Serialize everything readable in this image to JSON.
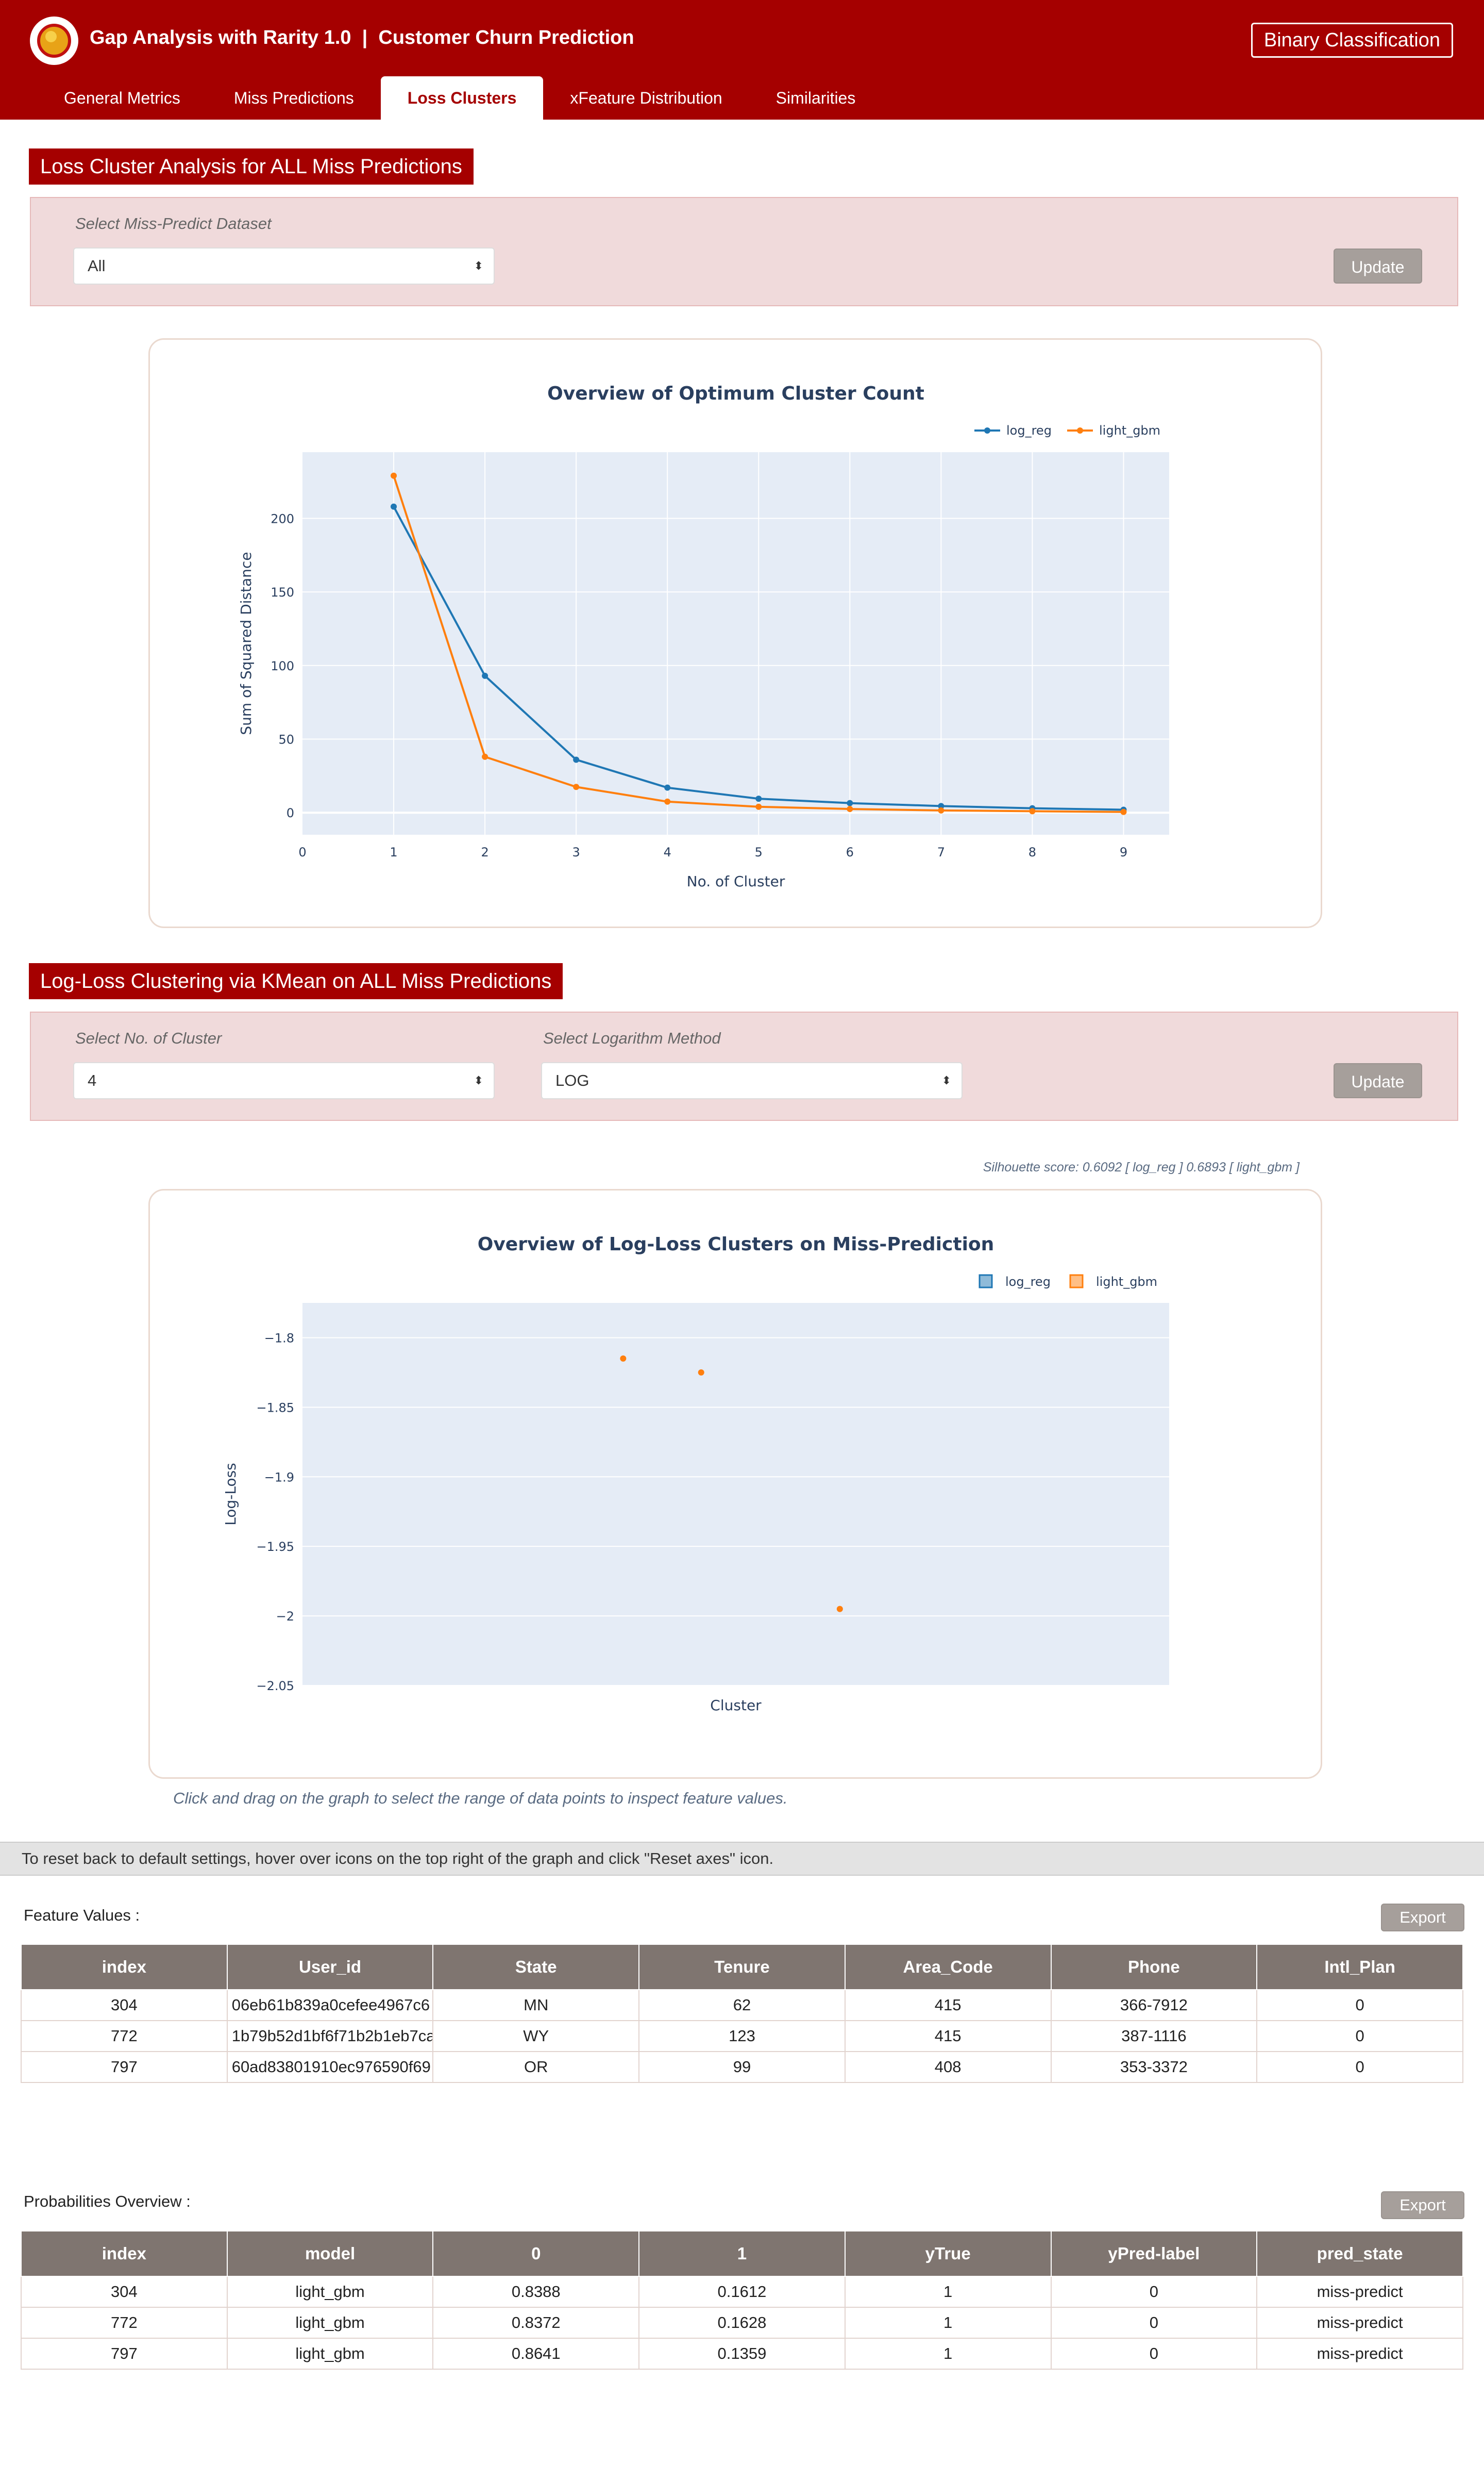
{
  "app": {
    "title": "Gap Analysis with Rarity 1.0  |  Customer Churn Prediction",
    "badge": "Binary Classification"
  },
  "tabs": [
    {
      "label": "General Metrics"
    },
    {
      "label": "Miss Predictions"
    },
    {
      "label": "Loss Clusters"
    },
    {
      "label": "xFeature Distribution"
    },
    {
      "label": "Similarities"
    }
  ],
  "active_tab": "Loss Clusters",
  "section1": {
    "title": "Loss Cluster Analysis for ALL Miss Predictions",
    "select_label": "Select Miss-Predict Dataset",
    "select_value": "All",
    "update_label": "Update"
  },
  "section2": {
    "title": "Log-Loss Clustering via KMean on ALL Miss Predictions",
    "cluster_label": "Select No. of Cluster",
    "cluster_value": "4",
    "method_label": "Select Logarithm Method",
    "method_value": "LOG",
    "update_label": "Update"
  },
  "silhouette": "Silhouette score: 0.6092 [ log_reg ] 0.6893 [ light_gbm ]",
  "drag_note": "Click and drag on the graph to select the range of data points to inspect feature values.",
  "reset_note": "To reset back to default settings, hover over icons on the top right of the graph and click \"Reset axes\" icon.",
  "chart_data": [
    {
      "type": "line",
      "title": "Overview of Optimum Cluster Count",
      "xlabel": "No. of Cluster",
      "ylabel": "Sum of Squared Distance",
      "x": [
        1,
        2,
        3,
        4,
        5,
        6,
        7,
        8,
        9
      ],
      "xlim": [
        0,
        9.5
      ],
      "ylim": [
        -15,
        245
      ],
      "xticks": [
        "0",
        "1",
        "2",
        "3",
        "4",
        "5",
        "6",
        "7",
        "8",
        "9"
      ],
      "yticks": [
        0,
        50,
        100,
        150,
        200
      ],
      "legend": "top-right",
      "grid": true,
      "series": [
        {
          "name": "log_reg",
          "color": "#1f77b4",
          "values": [
            208,
            93,
            36,
            17,
            9.5,
            6.5,
            4.5,
            3,
            2
          ]
        },
        {
          "name": "light_gbm",
          "color": "#ff7f0e",
          "values": [
            229,
            38,
            17.5,
            7.5,
            4,
            2.5,
            1.5,
            1,
            0.5
          ]
        }
      ]
    },
    {
      "type": "scatter",
      "title": "Overview of Log-Loss Clusters on Miss-Prediction",
      "xlabel": "Cluster",
      "ylabel": "Log-Loss",
      "ylim": [
        -2.05,
        -1.775
      ],
      "yticks": [
        -1.8,
        -1.85,
        -1.9,
        -1.95,
        -2,
        -2.05
      ],
      "ytick_labels": [
        "−1.8",
        "−1.85",
        "−1.9",
        "−1.95",
        "−2",
        "−2.05"
      ],
      "legend": "top-right",
      "grid": true,
      "series": [
        {
          "name": "log_reg",
          "color": "#1f77b4",
          "points": []
        },
        {
          "name": "light_gbm",
          "color": "#ff7f0e",
          "points": [
            {
              "x": 0.37,
              "y": -1.815
            },
            {
              "x": 0.46,
              "y": -1.825
            },
            {
              "x": 0.62,
              "y": -1.995
            }
          ]
        }
      ]
    }
  ],
  "feature_values": {
    "label": "Feature Values :",
    "export_label": "Export",
    "columns": [
      "index",
      "User_id",
      "State",
      "Tenure",
      "Area_Code",
      "Phone",
      "Intl_Plan"
    ],
    "rows": [
      [
        "304",
        "06eb61b839a0cefee4967c6",
        "MN",
        "62",
        "415",
        "366-7912",
        "0"
      ],
      [
        "772",
        "1b79b52d1bf6f71b2b1eb7ca",
        "WY",
        "123",
        "415",
        "387-1116",
        "0"
      ],
      [
        "797",
        "60ad83801910ec976590f69",
        "OR",
        "99",
        "408",
        "353-3372",
        "0"
      ]
    ]
  },
  "probabilities": {
    "label": "Probabilities Overview :",
    "export_label": "Export",
    "columns": [
      "index",
      "model",
      "0",
      "1",
      "yTrue",
      "yPred-label",
      "pred_state"
    ],
    "rows": [
      [
        "304",
        "light_gbm",
        "0.8388",
        "0.1612",
        "1",
        "0",
        "miss-predict"
      ],
      [
        "772",
        "light_gbm",
        "0.8372",
        "0.1628",
        "1",
        "0",
        "miss-predict"
      ],
      [
        "797",
        "light_gbm",
        "0.8641",
        "0.1359",
        "1",
        "0",
        "miss-predict"
      ]
    ]
  }
}
